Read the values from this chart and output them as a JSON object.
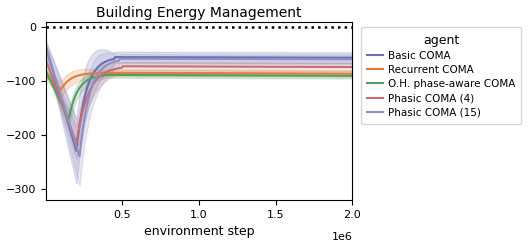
{
  "title": "Building Energy Management",
  "xlabel": "environment step",
  "xlim": [
    0,
    2000000
  ],
  "ylim": [
    -320,
    10
  ],
  "yticks": [
    0,
    -100,
    -200,
    -300
  ],
  "xticks": [
    500000,
    1000000,
    1500000,
    2000000
  ],
  "xticklabels": [
    "0.5",
    "1.0",
    "1.5",
    "2.0"
  ],
  "x_offset_label": "1e6",
  "legend_title": "agent",
  "agent_params": [
    {
      "label": "Basic COMA",
      "color": "#6b6eb5",
      "start": -35,
      "dip": -230,
      "dip_x": 200000,
      "final": -55,
      "rise_x": 450000,
      "std_dip": 60,
      "std_final": 10
    },
    {
      "label": "Recurrent COMA",
      "color": "#e07d3c",
      "start": -90,
      "dip": -115,
      "dip_x": 100000,
      "final": -84,
      "rise_x": 350000,
      "std_dip": 15,
      "std_final": 6
    },
    {
      "label": "O.H. phase-aware COMA",
      "color": "#4fa060",
      "start": -80,
      "dip": -170,
      "dip_x": 150000,
      "final": -88,
      "rise_x": 380000,
      "std_dip": 15,
      "std_final": 5
    },
    {
      "label": "Phasic COMA (4)",
      "color": "#c47070",
      "start": -60,
      "dip": -215,
      "dip_x": 200000,
      "final": -72,
      "rise_x": 500000,
      "std_dip": 30,
      "std_final": 8
    },
    {
      "label": "Phasic COMA (15)",
      "color": "#9090c0",
      "start": -35,
      "dip": -240,
      "dip_x": 220000,
      "final": -58,
      "rise_x": 480000,
      "std_dip": 55,
      "std_final": 9
    }
  ]
}
